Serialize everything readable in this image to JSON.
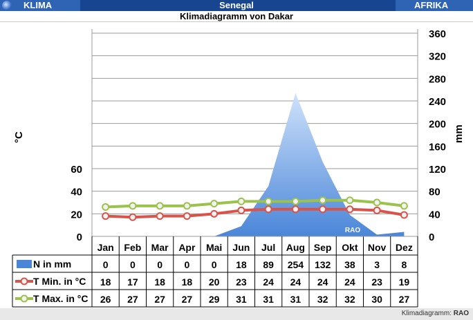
{
  "header": {
    "left_label": "KLIMA",
    "center_label": "Senegal",
    "right_label": "AFRIKA"
  },
  "subtitle": "Klimadiagramm von Dakar",
  "footer": {
    "credit_prefix": "Klimadiagramm:",
    "credit_name": "RAO"
  },
  "colors": {
    "header_blue": "#2f64b4",
    "header_dark": "#17458f",
    "precip": "#4a86d8",
    "tmin": "#d9534a",
    "tmax": "#9bc24a"
  },
  "chart_data": {
    "type": "area+line",
    "watermark": "RAO",
    "ylabel_left": "°C",
    "ylabel_right": "mm",
    "left_axis": {
      "ticks": [
        0,
        20,
        40,
        60
      ],
      "range": [
        0,
        180
      ]
    },
    "right_axis": {
      "ticks": [
        0,
        40,
        80,
        120,
        160,
        200,
        240,
        280,
        320,
        360
      ],
      "range": [
        0,
        360
      ]
    },
    "categories": [
      "Jan",
      "Feb",
      "Mar",
      "Apr",
      "Mai",
      "Jun",
      "Jul",
      "Aug",
      "Sep",
      "Okt",
      "Nov",
      "Dez"
    ],
    "series": [
      {
        "name": "N in mm",
        "axis": "right",
        "kind": "area",
        "values": [
          0,
          0,
          0,
          0,
          0,
          18,
          89,
          254,
          132,
          38,
          3,
          8
        ]
      },
      {
        "name": "T Min. in °C",
        "axis": "left",
        "kind": "line",
        "values": [
          18,
          17,
          18,
          18,
          20,
          23,
          24,
          24,
          24,
          24,
          23,
          19
        ]
      },
      {
        "name": "T Max. in °C",
        "axis": "left",
        "kind": "line",
        "values": [
          26,
          27,
          27,
          27,
          29,
          31,
          31,
          31,
          32,
          32,
          30,
          27
        ]
      }
    ],
    "grid": "horizontal"
  }
}
